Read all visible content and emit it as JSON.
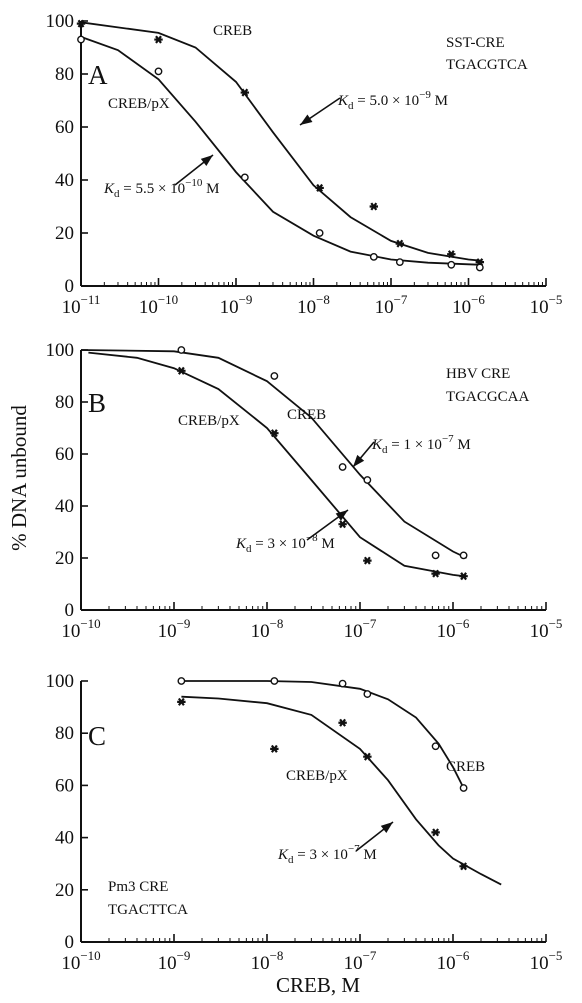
{
  "ylabel": "% DNA unbound",
  "xlabel": "CREB, M",
  "chart_data": [
    {
      "type": "scatter",
      "panel": "A",
      "xscale": "log",
      "xlim": [
        1e-11,
        1e-05
      ],
      "ylim": [
        0,
        100
      ],
      "xticks": [
        {
          "base": "10",
          "exp": "−11"
        },
        {
          "base": "10",
          "exp": "−10"
        },
        {
          "base": "10",
          "exp": "−9"
        },
        {
          "base": "10",
          "exp": "−8"
        },
        {
          "base": "10",
          "exp": "−7"
        },
        {
          "base": "10",
          "exp": "−6"
        },
        {
          "base": "10",
          "exp": "−5"
        }
      ],
      "yticks": [
        "0",
        "20",
        "40",
        "60",
        "80",
        "100"
      ],
      "ytick_values": [
        0,
        20,
        40,
        60,
        80,
        100
      ],
      "annotation": [
        "SST-CRE",
        "TGACGTCA"
      ],
      "series": [
        {
          "name": "CREB",
          "marker": "star",
          "points": [
            [
              1e-11,
              99
            ],
            [
              1e-10,
              93
            ],
            [
              1.3e-09,
              73
            ],
            [
              1.2e-08,
              37
            ],
            [
              6e-08,
              30
            ],
            [
              1.3e-07,
              16
            ],
            [
              6e-07,
              12
            ],
            [
              1.4e-06,
              9
            ]
          ],
          "curve": [
            [
              1e-11,
              99.5
            ],
            [
              1e-10,
              95.5
            ],
            [
              3e-10,
              90
            ],
            [
              1e-09,
              77
            ],
            [
              3e-09,
              58
            ],
            [
              1e-08,
              38
            ],
            [
              3e-08,
              26
            ],
            [
              1e-07,
              17
            ],
            [
              3e-07,
              12.5
            ],
            [
              1e-06,
              10
            ],
            [
              1.5e-06,
              9.5
            ]
          ]
        },
        {
          "name": "CREB/pX",
          "marker": "circle",
          "points": [
            [
              1e-11,
              93
            ],
            [
              1e-10,
              81
            ],
            [
              1.3e-09,
              41
            ],
            [
              1.2e-08,
              20
            ],
            [
              6e-08,
              11
            ],
            [
              1.3e-07,
              9
            ],
            [
              6e-07,
              8
            ],
            [
              1.4e-06,
              7
            ]
          ],
          "curve": [
            [
              1e-11,
              94
            ],
            [
              3e-11,
              89
            ],
            [
              1e-10,
              78
            ],
            [
              3e-10,
              62
            ],
            [
              1e-09,
              43
            ],
            [
              3e-09,
              28
            ],
            [
              1e-08,
              19
            ],
            [
              3e-08,
              13
            ],
            [
              1e-07,
              10
            ],
            [
              3e-07,
              8.8
            ],
            [
              1e-06,
              8.2
            ],
            [
              1.5e-06,
              8
            ]
          ]
        }
      ],
      "curve_labels": [
        "CREB",
        "CREB/pX"
      ],
      "kd_labels": [
        {
          "text": "= 5.0 × 10",
          "exp": "−9",
          "unit": "M"
        },
        {
          "text": "= 5.5 × 10",
          "exp": "−10",
          "unit": "M"
        }
      ]
    },
    {
      "type": "scatter",
      "panel": "B",
      "xscale": "log",
      "xlim": [
        1e-10,
        1e-05
      ],
      "ylim": [
        0,
        100
      ],
      "xticks": [
        {
          "base": "10",
          "exp": "−10"
        },
        {
          "base": "10",
          "exp": "−9"
        },
        {
          "base": "10",
          "exp": "−8"
        },
        {
          "base": "10",
          "exp": "−7"
        },
        {
          "base": "10",
          "exp": "−6"
        },
        {
          "base": "10",
          "exp": "−5"
        }
      ],
      "yticks": [
        "0",
        "20",
        "40",
        "60",
        "80",
        "100"
      ],
      "ytick_values": [
        0,
        20,
        40,
        60,
        80,
        100
      ],
      "annotation": [
        "HBV CRE",
        "TGACGCAA"
      ],
      "series": [
        {
          "name": "CREB",
          "marker": "circle",
          "points": [
            [
              1.2e-09,
              100
            ],
            [
              1.2e-08,
              90
            ],
            [
              6.5e-08,
              55
            ],
            [
              1.2e-07,
              50
            ],
            [
              6.5e-07,
              21
            ],
            [
              1.3e-06,
              21
            ]
          ],
          "curve": [
            [
              1e-10,
              100
            ],
            [
              1e-09,
              99.5
            ],
            [
              3e-09,
              97
            ],
            [
              1e-08,
              88
            ],
            [
              3e-08,
              74
            ],
            [
              1e-07,
              52
            ],
            [
              3e-07,
              34
            ],
            [
              1e-06,
              22.5
            ],
            [
              1.4e-06,
              20
            ]
          ]
        },
        {
          "name": "CREB/pX",
          "marker": "star",
          "points": [
            [
              1.2e-09,
              92
            ],
            [
              1.2e-08,
              68
            ],
            [
              6.5e-08,
              33
            ],
            [
              1.2e-07,
              19
            ],
            [
              6.5e-07,
              14
            ],
            [
              1.3e-06,
              13
            ]
          ],
          "curve": [
            [
              1.2e-10,
              99
            ],
            [
              4e-10,
              97
            ],
            [
              1e-09,
              93
            ],
            [
              3e-09,
              85
            ],
            [
              1e-08,
              70
            ],
            [
              3e-08,
              50
            ],
            [
              1e-07,
              28
            ],
            [
              3e-07,
              17
            ],
            [
              1e-06,
              13.5
            ],
            [
              1.3e-06,
              13
            ]
          ]
        }
      ],
      "curve_labels": [
        "CREB",
        "CREB/pX"
      ],
      "kd_labels": [
        {
          "text": "= 1 × 10",
          "exp": "−7",
          "unit": "M"
        },
        {
          "text": "= 3 × 10",
          "exp": "−8",
          "unit": "M"
        }
      ]
    },
    {
      "type": "scatter",
      "panel": "C",
      "xscale": "log",
      "xlim": [
        1e-10,
        1e-05
      ],
      "ylim": [
        0,
        100
      ],
      "xticks": [
        {
          "base": "10",
          "exp": "−10"
        },
        {
          "base": "10",
          "exp": "−9"
        },
        {
          "base": "10",
          "exp": "−8"
        },
        {
          "base": "10",
          "exp": "−7"
        },
        {
          "base": "10",
          "exp": "−6"
        },
        {
          "base": "10",
          "exp": "−5"
        }
      ],
      "yticks": [
        "0",
        "20",
        "40",
        "60",
        "80",
        "100"
      ],
      "ytick_values": [
        0,
        20,
        40,
        60,
        80,
        100
      ],
      "annotation": [
        "Pm3 CRE",
        "TGACTTCA"
      ],
      "series": [
        {
          "name": "CREB",
          "marker": "circle",
          "points": [
            [
              1.2e-09,
              100
            ],
            [
              1.2e-08,
              100
            ],
            [
              6.5e-08,
              99
            ],
            [
              1.2e-07,
              95
            ],
            [
              6.5e-07,
              75
            ],
            [
              1.3e-06,
              59
            ]
          ],
          "curve": [
            [
              1.2e-09,
              100
            ],
            [
              1e-08,
              100
            ],
            [
              3e-08,
              99.6
            ],
            [
              1e-07,
              97
            ],
            [
              2e-07,
              93
            ],
            [
              4e-07,
              86
            ],
            [
              7e-07,
              76
            ],
            [
              1e-06,
              67
            ],
            [
              1.3e-06,
              59
            ]
          ]
        },
        {
          "name": "CREB/pX",
          "marker": "star",
          "points": [
            [
              1.2e-09,
              92
            ],
            [
              1.2e-08,
              74
            ],
            [
              6.5e-08,
              84
            ],
            [
              1.2e-07,
              71
            ],
            [
              6.5e-07,
              42
            ],
            [
              1.3e-06,
              29
            ]
          ],
          "curve": [
            [
              1.2e-09,
              94
            ],
            [
              3e-09,
              93.3
            ],
            [
              1e-08,
              91.5
            ],
            [
              3e-08,
              87
            ],
            [
              1e-07,
              74
            ],
            [
              2e-07,
              62
            ],
            [
              4e-07,
              47
            ],
            [
              7e-07,
              37
            ],
            [
              1e-06,
              32
            ],
            [
              2e-06,
              26
            ],
            [
              3.3e-06,
              22
            ]
          ]
        }
      ],
      "curve_labels": [
        "CREB",
        "CREB/pX"
      ],
      "kd_labels": [
        {
          "text": "= 3 × 10",
          "exp": "−7",
          "unit": "M"
        }
      ]
    }
  ]
}
